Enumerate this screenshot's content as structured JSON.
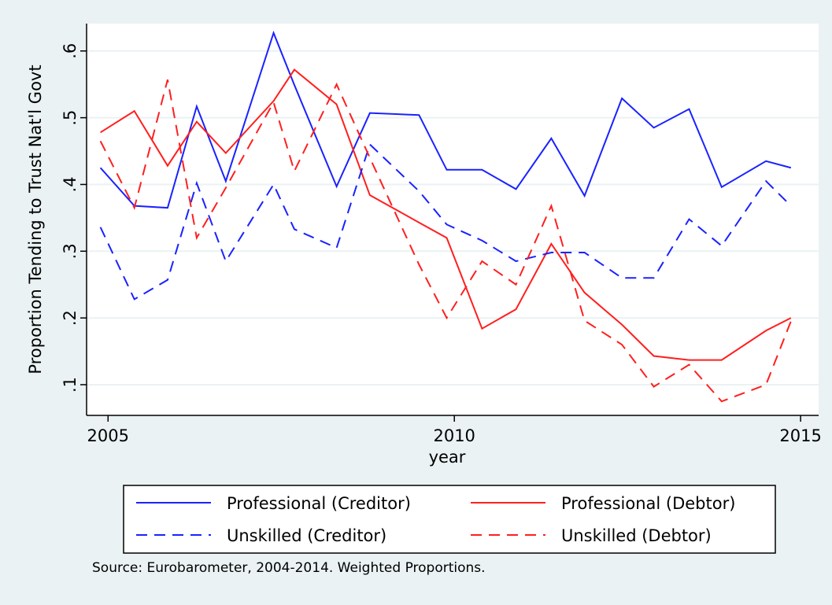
{
  "chart_data": {
    "type": "line",
    "x_label": "year",
    "y_label": "Proportion Tending to Trust Nat'l Govt",
    "note": "Source: Eurobarometer, 2004-2014. Weighted Proportions.",
    "x": [
      2004.89,
      2005.38,
      2005.86,
      2006.28,
      2006.7,
      2007.39,
      2007.69,
      2008.3,
      2008.78,
      2009.49,
      2009.89,
      2010.4,
      2010.89,
      2011.4,
      2011.88,
      2012.42,
      2012.88,
      2013.39,
      2013.86,
      2014.5,
      2014.86
    ],
    "xlim": [
      2004.69,
      2015.26
    ],
    "xticks": [
      2005,
      2010,
      2015
    ],
    "ylim": [
      0.054,
      0.641
    ],
    "yticks": [
      {
        "value": 0.1,
        "label": ".1"
      },
      {
        "value": 0.2,
        "label": ".2"
      },
      {
        "value": 0.3,
        "label": ".3"
      },
      {
        "value": 0.4,
        "label": ".4"
      },
      {
        "value": 0.5,
        "label": ".5"
      },
      {
        "value": 0.6,
        "label": ".6"
      }
    ],
    "grid": true,
    "legend": "bottom",
    "series": [
      {
        "name": "Professional (Creditor)",
        "color": "#1a22ff",
        "dashed": false,
        "values": [
          0.425,
          0.368,
          0.365,
          0.517,
          0.405,
          0.627,
          0.549,
          0.397,
          0.507,
          0.504,
          0.422,
          0.422,
          0.393,
          0.469,
          0.383,
          0.529,
          0.485,
          0.513,
          0.396,
          0.435,
          0.425
        ]
      },
      {
        "name": "Professional (Debtor)",
        "color": "#ff1f1f",
        "dashed": false,
        "values": [
          0.478,
          0.51,
          0.428,
          0.494,
          0.447,
          0.525,
          0.572,
          0.52,
          0.384,
          0.343,
          0.32,
          0.184,
          0.213,
          0.311,
          0.238,
          0.19,
          0.143,
          0.137,
          0.137,
          0.181,
          0.2
        ]
      },
      {
        "name": "Unskilled (Creditor)",
        "color": "#1a22ff",
        "dashed": true,
        "values": [
          0.336,
          0.228,
          0.257,
          0.402,
          0.285,
          0.4,
          0.333,
          0.305,
          0.46,
          0.39,
          0.34,
          0.316,
          0.285,
          0.298,
          0.298,
          0.26,
          0.26,
          0.348,
          0.308,
          0.405,
          0.368
        ]
      },
      {
        "name": "Unskilled (Debtor)",
        "color": "#ff1f1f",
        "dashed": true,
        "values": [
          0.465,
          0.365,
          0.557,
          0.32,
          0.395,
          0.523,
          0.42,
          0.55,
          0.44,
          0.28,
          0.2,
          0.285,
          0.25,
          0.368,
          0.196,
          0.16,
          0.097,
          0.13,
          0.075,
          0.1,
          0.195
        ]
      }
    ]
  }
}
